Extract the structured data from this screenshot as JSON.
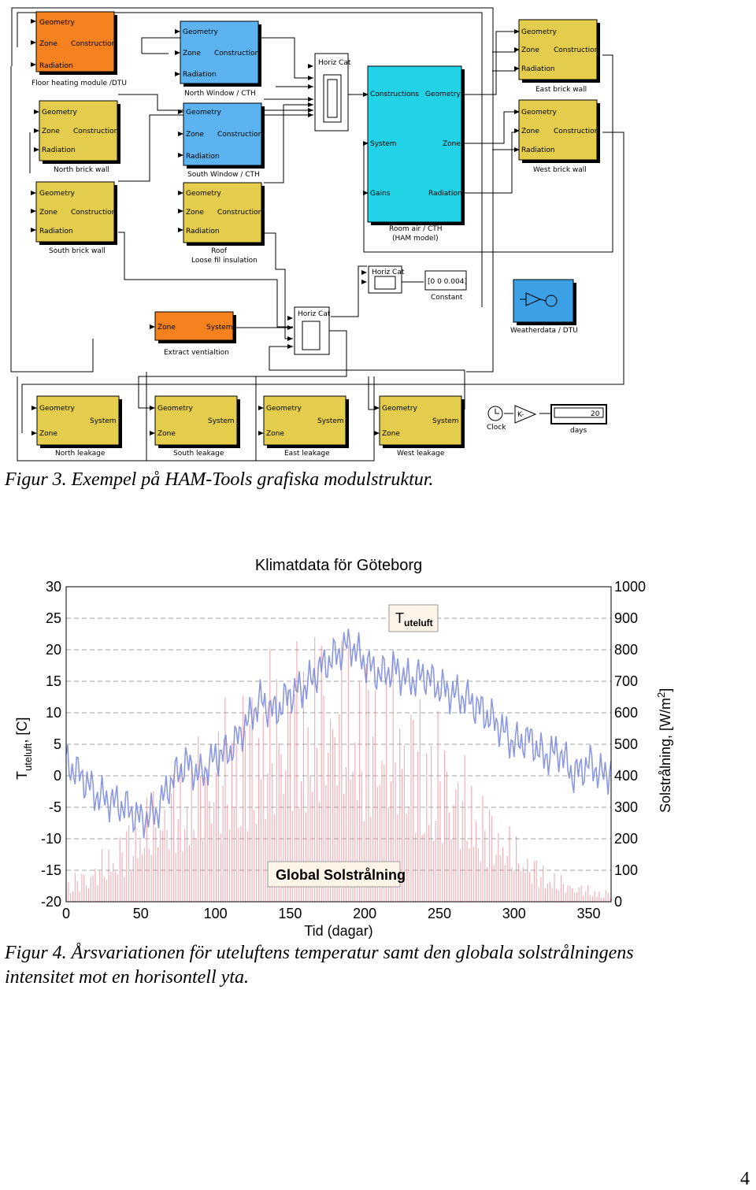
{
  "figure3": {
    "caption": "Figur 3. Exempel på HAM-Tools grafiska modulstruktur.",
    "ports": {
      "geometry": "Geometry",
      "zone": "Zone",
      "construction": "Construction",
      "radiation": "Radiation",
      "system": "System",
      "constructions": "Constructions",
      "gains": "Gains"
    },
    "blocks": {
      "floor": "Floor heating module /DTU",
      "north_window": "North Window  / CTH",
      "north_wall": "North brick wall",
      "south_window": "South Window  / CTH",
      "south_wall": "South brick wall",
      "roof_1": "Roof",
      "roof_2": "Loose fil insulation",
      "room_1": "Room air / CTH",
      "room_2": "(HAM model)",
      "east_wall": "East brick wall",
      "west_wall": "West brick wall",
      "extract": "Extract ventialtion",
      "weather": "Weatherdata / DTU",
      "constant_value": "[0 0 0.004]",
      "constant": "Constant",
      "horiz_cat": "Horiz Cat",
      "north_leak": "North leakage",
      "south_leak": "South leakage",
      "east_leak": "East leakage",
      "west_leak": "West leakage",
      "clock": "Clock",
      "gain": "K-",
      "display_value": "20",
      "days": "days"
    },
    "colors": {
      "orange": "#f5821f",
      "blue": "#5cb3f0",
      "yellow": "#e4cc4c",
      "cyan": "#22d2e6",
      "weather_blue": "#3ba0e6"
    }
  },
  "figure4": {
    "caption_1": "Figur 4. Årsvariationen för uteluftens temperatur samt den globala solstrålningens",
    "caption_2": "intensitet mot en horisontell yta.",
    "legend_temp_main": "T",
    "legend_temp_sub": "uteluft",
    "legend_solar": "Global Solstrålning",
    "ylabel_left_main": "T",
    "ylabel_left_sub": "uteluft",
    "ylabel_left_rest": ", [C]",
    "ylabel_right": "Solstrålning, [W/m",
    "ylabel_right_sup": "2",
    "ylabel_right_end": "]"
  },
  "page_number": "4",
  "chart_data": {
    "type": "line",
    "title": "Klimatdata för Göteborg",
    "xlabel": "Tid (dagar)",
    "xlim": [
      0,
      365
    ],
    "xticks": [
      0,
      50,
      100,
      150,
      200,
      250,
      300,
      350
    ],
    "y_left": {
      "label": "Tuteluft, [C]",
      "lim": [
        -20,
        30
      ],
      "ticks": [
        30,
        25,
        20,
        15,
        10,
        5,
        0,
        -5,
        -10,
        -15,
        -20
      ]
    },
    "y_right": {
      "label": "Solstrålning, [W/m2]",
      "lim": [
        0,
        1000
      ],
      "ticks": [
        1000,
        900,
        800,
        700,
        600,
        500,
        400,
        300,
        200,
        100,
        0
      ]
    },
    "grid": "dashed-horizontal",
    "series": [
      {
        "name": "Tuteluft",
        "axis": "left",
        "color": "#6f7fd8",
        "x": [
          0,
          10,
          20,
          30,
          40,
          50,
          60,
          70,
          80,
          90,
          100,
          110,
          120,
          130,
          140,
          150,
          160,
          170,
          180,
          190,
          200,
          210,
          220,
          230,
          240,
          250,
          260,
          270,
          280,
          290,
          300,
          310,
          320,
          330,
          340,
          350,
          360,
          365
        ],
        "y": [
          2,
          0,
          -3,
          -4,
          -5,
          -7,
          -6,
          -1,
          2,
          0,
          3,
          4,
          8,
          12,
          10,
          13,
          14,
          17,
          19,
          21,
          18,
          16,
          17,
          15,
          16,
          14,
          13,
          12,
          10,
          8,
          5,
          6,
          3,
          4,
          0,
          2,
          0,
          1
        ]
      },
      {
        "name": "Global Solstrålning",
        "axis": "right",
        "color": "#e8707a",
        "x": [
          0,
          15,
          30,
          45,
          60,
          75,
          90,
          105,
          120,
          135,
          150,
          165,
          180,
          195,
          210,
          225,
          240,
          255,
          270,
          285,
          300,
          315,
          330,
          345,
          360
        ],
        "y": [
          80,
          120,
          200,
          300,
          380,
          470,
          560,
          650,
          740,
          800,
          880,
          900,
          890,
          860,
          820,
          760,
          680,
          580,
          450,
          330,
          230,
          150,
          90,
          60,
          40
        ]
      }
    ]
  }
}
